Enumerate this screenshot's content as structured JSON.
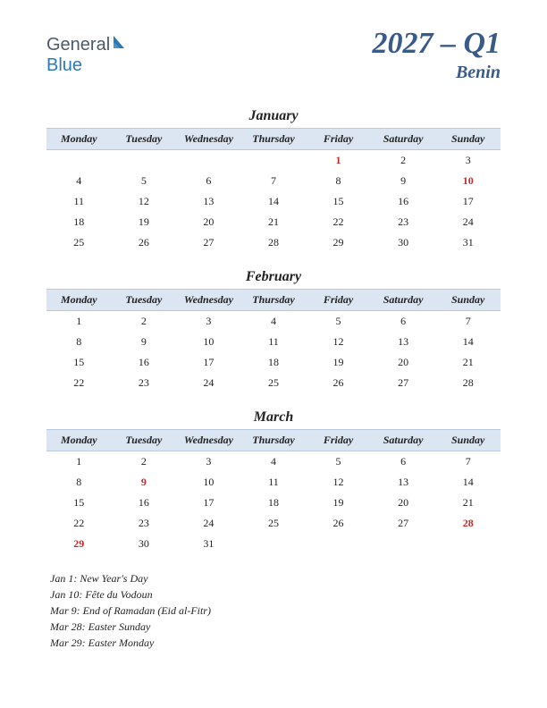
{
  "logo": {
    "text1": "General",
    "text2": "Blue"
  },
  "title": {
    "main": "2027 – Q1",
    "sub": "Benin"
  },
  "colors": {
    "header_bg": "#dce5f2",
    "header_border": "#b8c8dd",
    "title_color": "#3a5a8a",
    "holiday_color": "#c62828",
    "text_color": "#222222"
  },
  "day_headers": [
    "Monday",
    "Tuesday",
    "Wednesday",
    "Thursday",
    "Friday",
    "Saturday",
    "Sunday"
  ],
  "months": [
    {
      "name": "January",
      "weeks": [
        [
          "",
          "",
          "",
          "",
          "1",
          "2",
          "3"
        ],
        [
          "4",
          "5",
          "6",
          "7",
          "8",
          "9",
          "10"
        ],
        [
          "11",
          "12",
          "13",
          "14",
          "15",
          "16",
          "17"
        ],
        [
          "18",
          "19",
          "20",
          "21",
          "22",
          "23",
          "24"
        ],
        [
          "25",
          "26",
          "27",
          "28",
          "29",
          "30",
          "31"
        ]
      ],
      "holidays": [
        "1",
        "10"
      ]
    },
    {
      "name": "February",
      "weeks": [
        [
          "1",
          "2",
          "3",
          "4",
          "5",
          "6",
          "7"
        ],
        [
          "8",
          "9",
          "10",
          "11",
          "12",
          "13",
          "14"
        ],
        [
          "15",
          "16",
          "17",
          "18",
          "19",
          "20",
          "21"
        ],
        [
          "22",
          "23",
          "24",
          "25",
          "26",
          "27",
          "28"
        ]
      ],
      "holidays": []
    },
    {
      "name": "March",
      "weeks": [
        [
          "1",
          "2",
          "3",
          "4",
          "5",
          "6",
          "7"
        ],
        [
          "8",
          "9",
          "10",
          "11",
          "12",
          "13",
          "14"
        ],
        [
          "15",
          "16",
          "17",
          "18",
          "19",
          "20",
          "21"
        ],
        [
          "22",
          "23",
          "24",
          "25",
          "26",
          "27",
          "28"
        ],
        [
          "29",
          "30",
          "31",
          "",
          "",
          "",
          ""
        ]
      ],
      "holidays": [
        "9",
        "28",
        "29"
      ]
    }
  ],
  "holiday_list": [
    "Jan 1: New Year's Day",
    "Jan 10: Fête du Vodoun",
    "Mar 9: End of Ramadan (Eid al-Fitr)",
    "Mar 28: Easter Sunday",
    "Mar 29: Easter Monday"
  ]
}
